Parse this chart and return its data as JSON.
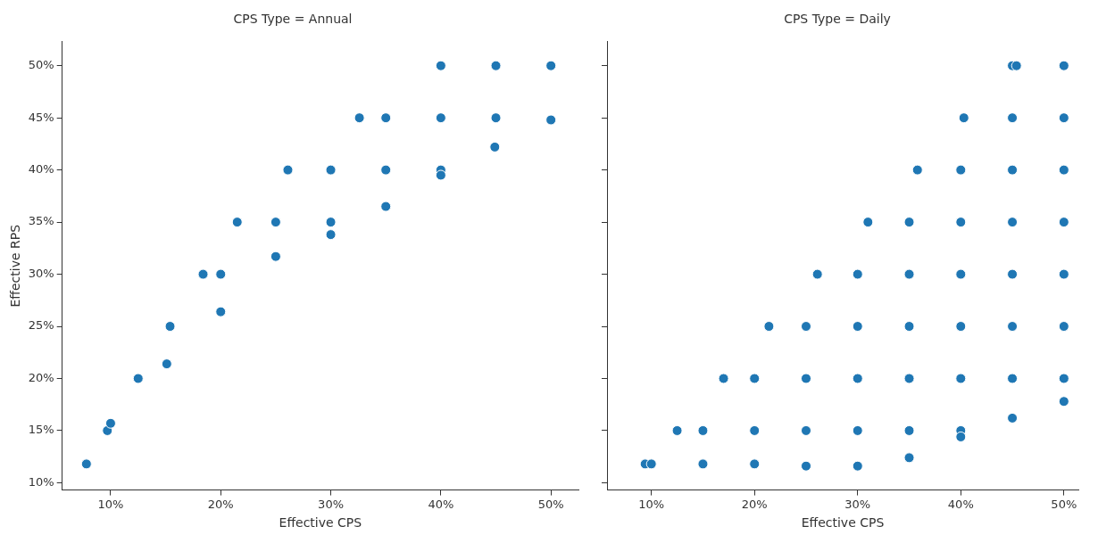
{
  "chart_data": [
    {
      "type": "scatter",
      "title": "CPS Type = Annual",
      "xlabel": "Effective CPS",
      "ylabel": "Effective RPS",
      "color": "#1f77b4",
      "grid": false,
      "marker": "circle",
      "x": [
        7.8,
        9.7,
        10,
        12.5,
        15.1,
        15.4,
        18.4,
        20,
        20,
        21.5,
        25,
        25,
        30,
        30,
        26.1,
        30,
        35,
        35,
        40,
        40,
        44.9,
        32.6,
        35,
        40,
        45,
        50,
        40,
        45,
        50
      ],
      "values": [
        11.8,
        15,
        15.7,
        20,
        21.4,
        25,
        30,
        30,
        26.4,
        35,
        35,
        31.7,
        35,
        33.8,
        40,
        40,
        40,
        36.5,
        40,
        39.5,
        42.2,
        45,
        45,
        45,
        45,
        44.8,
        50,
        50,
        50
      ],
      "xlim": [
        5.6,
        52.5
      ],
      "ylim": [
        9.3,
        52.3
      ],
      "xticks": [
        {
          "value": 10,
          "label": "10%"
        },
        {
          "value": 20,
          "label": "20%"
        },
        {
          "value": 30,
          "label": "30%"
        },
        {
          "value": 40,
          "label": "40%"
        },
        {
          "value": 50,
          "label": "50%"
        }
      ],
      "yticks": [
        {
          "value": 10,
          "label": "10%"
        },
        {
          "value": 15,
          "label": "15%"
        },
        {
          "value": 20,
          "label": "20%"
        },
        {
          "value": 25,
          "label": "25%"
        },
        {
          "value": 30,
          "label": "30%"
        },
        {
          "value": 35,
          "label": "35%"
        },
        {
          "value": 40,
          "label": "40%"
        },
        {
          "value": 45,
          "label": "45%"
        },
        {
          "value": 50,
          "label": "50%"
        }
      ]
    },
    {
      "type": "scatter",
      "title": "CPS Type = Daily",
      "xlabel": "Effective CPS",
      "color": "#1f77b4",
      "grid": false,
      "marker": "circle",
      "tick_labels": "x",
      "x": [
        45,
        45.4,
        50,
        40.3,
        45,
        50,
        35.8,
        40,
        45,
        50,
        31,
        35,
        40,
        45,
        50,
        26.1,
        30,
        35,
        40,
        45,
        50,
        21.4,
        25,
        30,
        35,
        40,
        45,
        50,
        17,
        20,
        25,
        30,
        35,
        40,
        45,
        50,
        50,
        45,
        12.5,
        15,
        20,
        25,
        30,
        35,
        40,
        40,
        35,
        9.4,
        10,
        15,
        20,
        25,
        30
      ],
      "values": [
        50,
        50,
        50,
        45,
        45,
        45,
        40,
        40,
        40,
        40,
        35,
        35,
        35,
        35,
        35,
        30,
        30,
        30,
        30,
        30,
        30,
        25,
        25,
        25,
        25,
        25,
        25,
        25,
        20,
        20,
        20,
        20,
        20,
        20,
        20,
        20,
        17.8,
        16.2,
        15,
        15,
        15,
        15,
        15,
        15,
        15,
        14.4,
        12.4,
        11.8,
        11.8,
        11.8,
        11.8,
        11.6,
        11.6
      ],
      "xlim": [
        5.7,
        51.4
      ],
      "ylim": [
        9.3,
        52.3
      ],
      "xticks": [
        {
          "value": 10,
          "label": "10%"
        },
        {
          "value": 20,
          "label": "20%"
        },
        {
          "value": 30,
          "label": "30%"
        },
        {
          "value": 40,
          "label": "40%"
        },
        {
          "value": 50,
          "label": "50%"
        }
      ],
      "yticks": [
        {
          "value": 10,
          "label": null
        },
        {
          "value": 15,
          "label": null
        },
        {
          "value": 20,
          "label": null
        },
        {
          "value": 25,
          "label": null
        },
        {
          "value": 30,
          "label": null
        },
        {
          "value": 35,
          "label": null
        },
        {
          "value": 40,
          "label": null
        },
        {
          "value": 45,
          "label": null
        },
        {
          "value": 50,
          "label": null
        }
      ]
    }
  ]
}
